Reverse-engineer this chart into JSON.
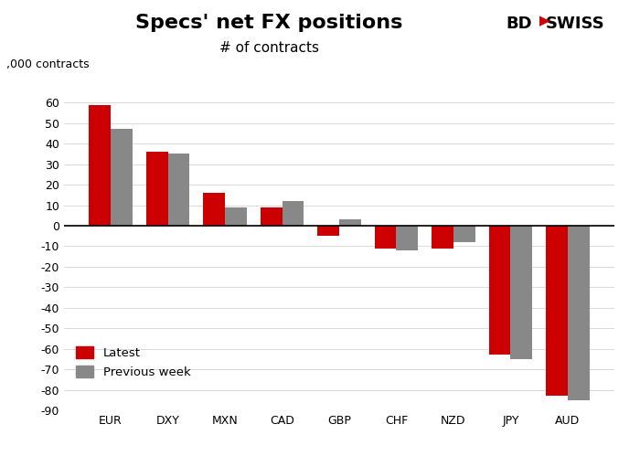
{
  "title": "Specs' net FX positions",
  "subtitle": "# of contracts",
  "ylabel": ",000 contracts",
  "categories": [
    "EUR",
    "DXY",
    "MXN",
    "CAD",
    "GBP",
    "CHF",
    "NZD",
    "JPY",
    "AUD"
  ],
  "latest": [
    59,
    36,
    16,
    9,
    -5,
    -11,
    -11,
    -63,
    -83
  ],
  "previous_week": [
    47,
    35,
    9,
    12,
    3,
    -12,
    -8,
    -65,
    -85
  ],
  "latest_color": "#cc0000",
  "prev_color": "#888888",
  "ylim": [
    -90,
    70
  ],
  "yticks": [
    -90,
    -80,
    -70,
    -60,
    -50,
    -40,
    -30,
    -20,
    -10,
    0,
    10,
    20,
    30,
    40,
    50,
    60
  ],
  "bar_width": 0.38,
  "legend_labels": [
    "Latest",
    "Previous week"
  ],
  "background_color": "#ffffff",
  "title_fontsize": 16,
  "subtitle_fontsize": 11,
  "ylabel_fontsize": 9,
  "tick_fontsize": 9
}
